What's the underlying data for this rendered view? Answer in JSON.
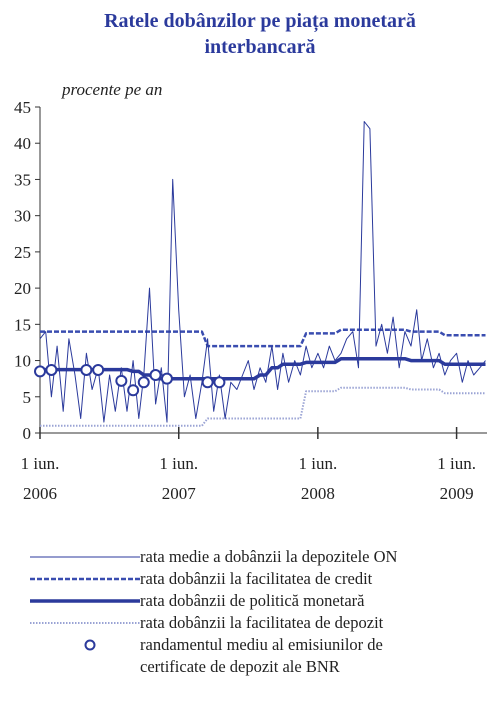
{
  "chart_data": {
    "type": "line",
    "title": "Ratele dobânzilor pe piața monetară interbancară",
    "subtitle": "procente pe an",
    "x": [
      "2006-06-01",
      "2006-06-16",
      "2006-07-01",
      "2006-07-16",
      "2006-08-01",
      "2006-08-16",
      "2006-09-01",
      "2006-09-16",
      "2006-10-01",
      "2006-10-16",
      "2006-11-01",
      "2006-11-16",
      "2006-12-01",
      "2006-12-16",
      "2007-01-01",
      "2007-01-16",
      "2007-02-01",
      "2007-02-16",
      "2007-03-01",
      "2007-03-16",
      "2007-04-01",
      "2007-04-16",
      "2007-05-01",
      "2007-05-16",
      "2007-06-01",
      "2007-06-16",
      "2007-07-01",
      "2007-07-16",
      "2007-08-01",
      "2007-08-16",
      "2007-09-01",
      "2007-09-16",
      "2007-10-01",
      "2007-10-16",
      "2007-11-01",
      "2007-11-16",
      "2007-12-01",
      "2007-12-16",
      "2008-01-01",
      "2008-01-16",
      "2008-02-01",
      "2008-02-16",
      "2008-03-01",
      "2008-03-16",
      "2008-04-01",
      "2008-04-16",
      "2008-05-01",
      "2008-05-16",
      "2008-06-01",
      "2008-06-16",
      "2008-07-01",
      "2008-07-16",
      "2008-08-01",
      "2008-08-16",
      "2008-09-01",
      "2008-09-16",
      "2008-10-01",
      "2008-10-16",
      "2008-11-01",
      "2008-11-16",
      "2008-12-01",
      "2008-12-16",
      "2009-01-01",
      "2009-01-16",
      "2009-02-01",
      "2009-02-16",
      "2009-03-01",
      "2009-03-16",
      "2009-04-01",
      "2009-04-16",
      "2009-05-01",
      "2009-05-16",
      "2009-06-01",
      "2009-06-16",
      "2009-07-01",
      "2009-07-16",
      "2009-08-01",
      "2009-08-16"
    ],
    "xlim": [
      "2006-06-01",
      "2009-08-20"
    ],
    "xticks": [
      {
        "value": "2006-06-01",
        "label": [
          "1 iun.",
          "2006"
        ]
      },
      {
        "value": "2007-06-01",
        "label": [
          "1 iun.",
          "2007"
        ]
      },
      {
        "value": "2008-06-01",
        "label": [
          "1 iun.",
          "2008"
        ]
      },
      {
        "value": "2009-06-01",
        "label": [
          "1 iun.",
          "2009"
        ]
      }
    ],
    "ylim": [
      0,
      45
    ],
    "yticks": [
      0,
      5,
      10,
      15,
      20,
      25,
      30,
      35,
      40,
      45
    ],
    "series": [
      {
        "name": "rata medie a dobânzii la depozitele ON",
        "color": "#2b3a9c",
        "style": "solid",
        "width": 1,
        "values": [
          13,
          14,
          5,
          12,
          3,
          13,
          8,
          2,
          11,
          6,
          9,
          1.5,
          8,
          3,
          9,
          3,
          10,
          2,
          8,
          20,
          4,
          9,
          1.5,
          35,
          17,
          5,
          8,
          2,
          7,
          13,
          3,
          8,
          2,
          7,
          6,
          8,
          10,
          6,
          9,
          7,
          12,
          6,
          11,
          7,
          10,
          8,
          12,
          9,
          11,
          9,
          12,
          10,
          11,
          13,
          14,
          9,
          43,
          42,
          12,
          15,
          11,
          16,
          9,
          14,
          12,
          17,
          10,
          13,
          9,
          11,
          8,
          10,
          11,
          7,
          10,
          8,
          9,
          10
        ]
      },
      {
        "name": "rata dobânzii la facilitatea de credit",
        "color": "#3a4db0",
        "style": "dashed",
        "width": 2.5,
        "values": [
          14,
          14,
          14,
          14,
          14,
          14,
          14,
          14,
          14,
          14,
          14,
          14,
          14,
          14,
          14,
          14,
          14,
          14,
          14,
          14,
          14,
          14,
          14,
          14,
          14,
          14,
          14,
          14,
          14,
          12,
          12,
          12,
          12,
          12,
          12,
          12,
          12,
          12,
          12,
          12,
          12,
          12,
          12,
          12,
          12,
          12,
          13.75,
          13.75,
          13.75,
          13.75,
          13.75,
          13.75,
          14.25,
          14.25,
          14.25,
          14.25,
          14.25,
          14.25,
          14.25,
          14.25,
          14.25,
          14.25,
          14.25,
          14.25,
          14,
          14,
          14,
          14,
          14,
          14,
          13.5,
          13.5,
          13.5,
          13.5,
          13.5,
          13.5,
          13.5,
          13.5
        ]
      },
      {
        "name": "rata dobânzii de politică monetară",
        "color": "#2b3a9c",
        "style": "solid",
        "width": 3.5,
        "values": [
          8.75,
          8.75,
          8.75,
          8.75,
          8.75,
          8.75,
          8.75,
          8.75,
          8.75,
          8.75,
          8.75,
          8.75,
          8.75,
          8.75,
          8.75,
          8.75,
          8.5,
          8.5,
          8,
          8,
          7.5,
          7.5,
          7.5,
          7.5,
          7.5,
          7.5,
          7.5,
          7.5,
          7.5,
          7.5,
          7.5,
          7.5,
          7.5,
          7.5,
          7.5,
          7.5,
          7.5,
          7.5,
          8,
          8,
          9,
          9,
          9.5,
          9.5,
          9.5,
          9.5,
          9.75,
          9.75,
          9.75,
          9.75,
          9.75,
          9.75,
          10.25,
          10.25,
          10.25,
          10.25,
          10.25,
          10.25,
          10.25,
          10.25,
          10.25,
          10.25,
          10.25,
          10.25,
          10,
          10,
          10,
          10,
          10,
          10,
          9.5,
          9.5,
          9.5,
          9.5,
          9.5,
          9.5,
          9.5,
          9.5
        ]
      },
      {
        "name": "rata dobânzii la facilitatea de depozit",
        "color": "#9aa3d4",
        "style": "dotted",
        "width": 2,
        "values": [
          1,
          1,
          1,
          1,
          1,
          1,
          1,
          1,
          1,
          1,
          1,
          1,
          1,
          1,
          1,
          1,
          1,
          1,
          1,
          1,
          1,
          1,
          1,
          1,
          1,
          1,
          1,
          1,
          1,
          2,
          2,
          2,
          2,
          2,
          2,
          2,
          2,
          2,
          2,
          2,
          2,
          2,
          2,
          2,
          2,
          2,
          5.75,
          5.75,
          5.75,
          5.75,
          5.75,
          5.75,
          6.25,
          6.25,
          6.25,
          6.25,
          6.25,
          6.25,
          6.25,
          6.25,
          6.25,
          6.25,
          6.25,
          6.25,
          6,
          6,
          6,
          6,
          6,
          6,
          5.5,
          5.5,
          5.5,
          5.5,
          5.5,
          5.5,
          5.5,
          5.5
        ]
      },
      {
        "name": "randamentul mediu al emisiunilor de certificate de depozit ale BNR",
        "color": "#2b3a9c",
        "style": "markers",
        "width": 2,
        "values": [
          8.5,
          null,
          8.7,
          null,
          null,
          null,
          null,
          null,
          8.7,
          null,
          8.7,
          null,
          null,
          null,
          7.2,
          null,
          5.9,
          null,
          7.0,
          null,
          8.0,
          null,
          7.5,
          null,
          null,
          null,
          null,
          null,
          null,
          7.0,
          null,
          7.0,
          null,
          null,
          null,
          null,
          null,
          null,
          null,
          null,
          null,
          null,
          null,
          null,
          null,
          null,
          null,
          null,
          null,
          null,
          null,
          null,
          null,
          null,
          null,
          null,
          null,
          null,
          null,
          null,
          null,
          null,
          null,
          null,
          null,
          null,
          null,
          null,
          null,
          null,
          null,
          null,
          null,
          null,
          null,
          null,
          null,
          null
        ]
      }
    ]
  }
}
